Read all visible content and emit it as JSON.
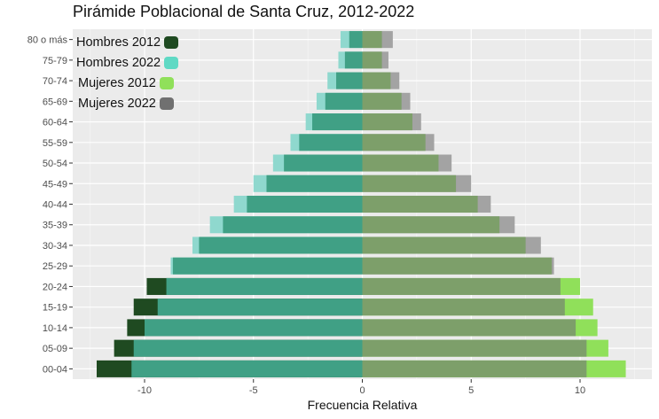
{
  "chart_data": {
    "type": "bar",
    "orientation": "horizontal",
    "title": "Pirámide Poblacional de Santa Cruz, 2012-2022",
    "xlabel": "Frecuencia Relativa",
    "ylabel": "",
    "xlim": [
      -12.2,
      12.9
    ],
    "xticks": [
      -10,
      -5,
      0,
      5,
      10
    ],
    "xtick_labels": [
      "-10",
      "-5",
      "0",
      "5",
      "10"
    ],
    "grid": true,
    "legend_position": "top-left",
    "categories": [
      "00-04",
      "05-09",
      "10-14",
      "15-19",
      "20-24",
      "25-29",
      "30-34",
      "35-39",
      "40-44",
      "45-49",
      "50-54",
      "55-59",
      "60-64",
      "65-69",
      "70-74",
      "75-79",
      "80 o más"
    ],
    "series": [
      {
        "name": "Hombres 2012",
        "color": "#1f4a21",
        "values": [
          -12.2,
          -11.4,
          -10.8,
          -10.5,
          -9.9,
          -8.7,
          -7.5,
          -6.4,
          -5.3,
          -4.4,
          -3.6,
          -2.9,
          -2.3,
          -1.7,
          -1.2,
          -0.8,
          -0.6
        ]
      },
      {
        "name": "Hombres 2022",
        "color": "#5fd9c4",
        "values": [
          -10.6,
          -10.5,
          -10.0,
          -9.4,
          -9.0,
          -8.8,
          -7.8,
          -7.0,
          -5.9,
          -5.0,
          -4.1,
          -3.3,
          -2.6,
          -2.1,
          -1.6,
          -1.1,
          -1.0
        ]
      },
      {
        "name": "Mujeres 2012",
        "color": "#90e05a",
        "values": [
          12.1,
          11.3,
          10.8,
          10.6,
          10.0,
          8.7,
          7.5,
          6.3,
          5.3,
          4.3,
          3.5,
          2.9,
          2.3,
          1.8,
          1.3,
          0.9,
          0.9
        ]
      },
      {
        "name": "Mujeres 2022",
        "color": "#707070",
        "values": [
          10.3,
          10.3,
          9.8,
          9.3,
          9.1,
          8.8,
          8.2,
          7.0,
          5.9,
          5.0,
          4.1,
          3.3,
          2.7,
          2.2,
          1.7,
          1.2,
          1.4
        ]
      }
    ],
    "overlap_colors": {
      "hombres": "#40a085",
      "mujeres": "#7d9f6a"
    }
  }
}
